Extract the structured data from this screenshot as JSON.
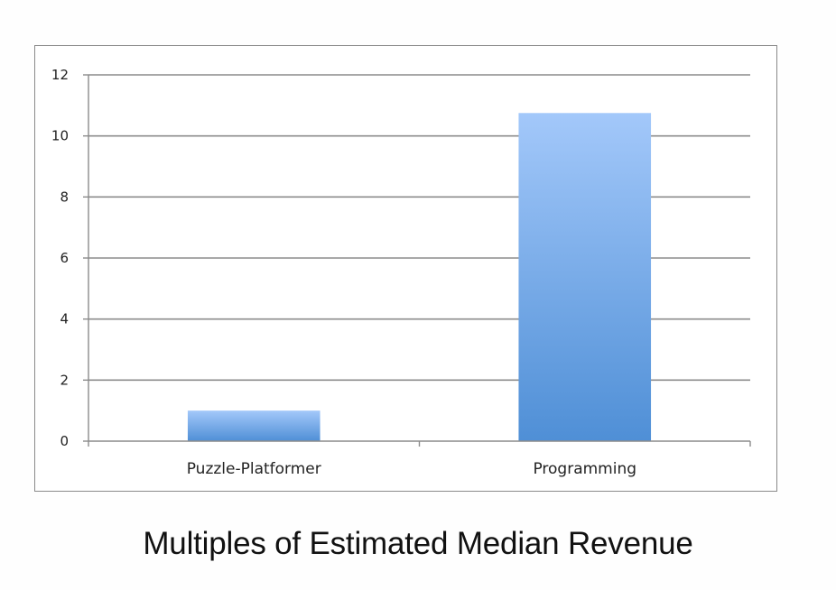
{
  "caption": "Multiples of Estimated Median Revenue",
  "colors": {
    "bar_top": "#a3c8fa",
    "bar_bottom": "#4f8fd6",
    "grid": "#8c8c8c",
    "axis": "#8c8c8c"
  },
  "chart_data": {
    "type": "bar",
    "categories": [
      "Puzzle-Platformer",
      "Programming"
    ],
    "values": [
      1,
      10.75
    ],
    "title": "",
    "xlabel": "",
    "ylabel": "",
    "ylim": [
      0,
      12
    ],
    "yticks": [
      "0",
      "2",
      "4",
      "6",
      "8",
      "10",
      "12"
    ],
    "grid": true,
    "legend": "none"
  }
}
